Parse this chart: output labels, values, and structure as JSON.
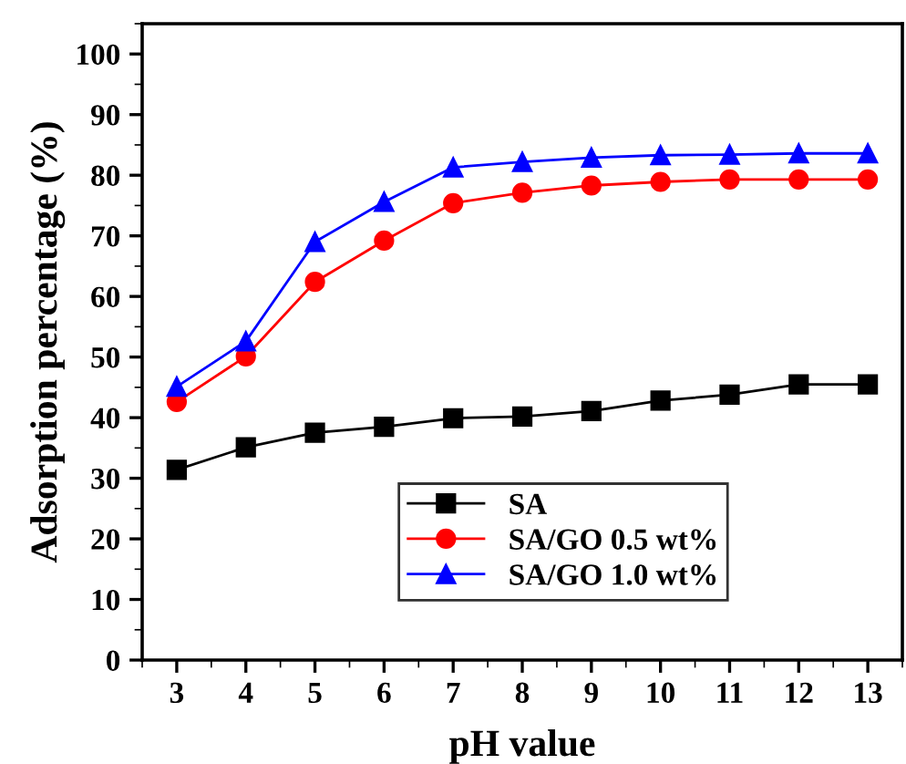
{
  "chart_data": {
    "type": "line",
    "xlabel": "pH value",
    "ylabel": "Adsorption percentage (%)",
    "x": [
      3,
      4,
      5,
      6,
      7,
      8,
      9,
      10,
      11,
      12,
      13
    ],
    "xlim": [
      2.5,
      13.5
    ],
    "xticks": [
      3,
      4,
      5,
      6,
      7,
      8,
      9,
      10,
      11,
      12,
      13
    ],
    "ylim": [
      0,
      105
    ],
    "yticks": [
      0,
      10,
      20,
      30,
      40,
      50,
      60,
      70,
      80,
      90,
      100
    ],
    "grid": false,
    "legend": "bottom right",
    "line_style": "solid",
    "series": [
      {
        "name": "SA",
        "color": "#000000",
        "marker": "square",
        "values": [
          31.4,
          35.1,
          37.5,
          38.5,
          39.9,
          40.2,
          41.1,
          42.8,
          43.8,
          45.5,
          45.5
        ]
      },
      {
        "name": "SA/GO 0.5 wt%",
        "color": "#ff0000",
        "marker": "circle",
        "values": [
          42.6,
          50.1,
          62.4,
          69.2,
          75.4,
          77.1,
          78.3,
          78.9,
          79.3,
          79.3,
          79.3
        ]
      },
      {
        "name": "SA/GO 1.0 wt%",
        "color": "#0000ff",
        "marker": "triangle",
        "values": [
          45.1,
          52.6,
          69.0,
          75.6,
          81.3,
          82.2,
          82.9,
          83.3,
          83.4,
          83.6,
          83.6
        ]
      }
    ]
  }
}
